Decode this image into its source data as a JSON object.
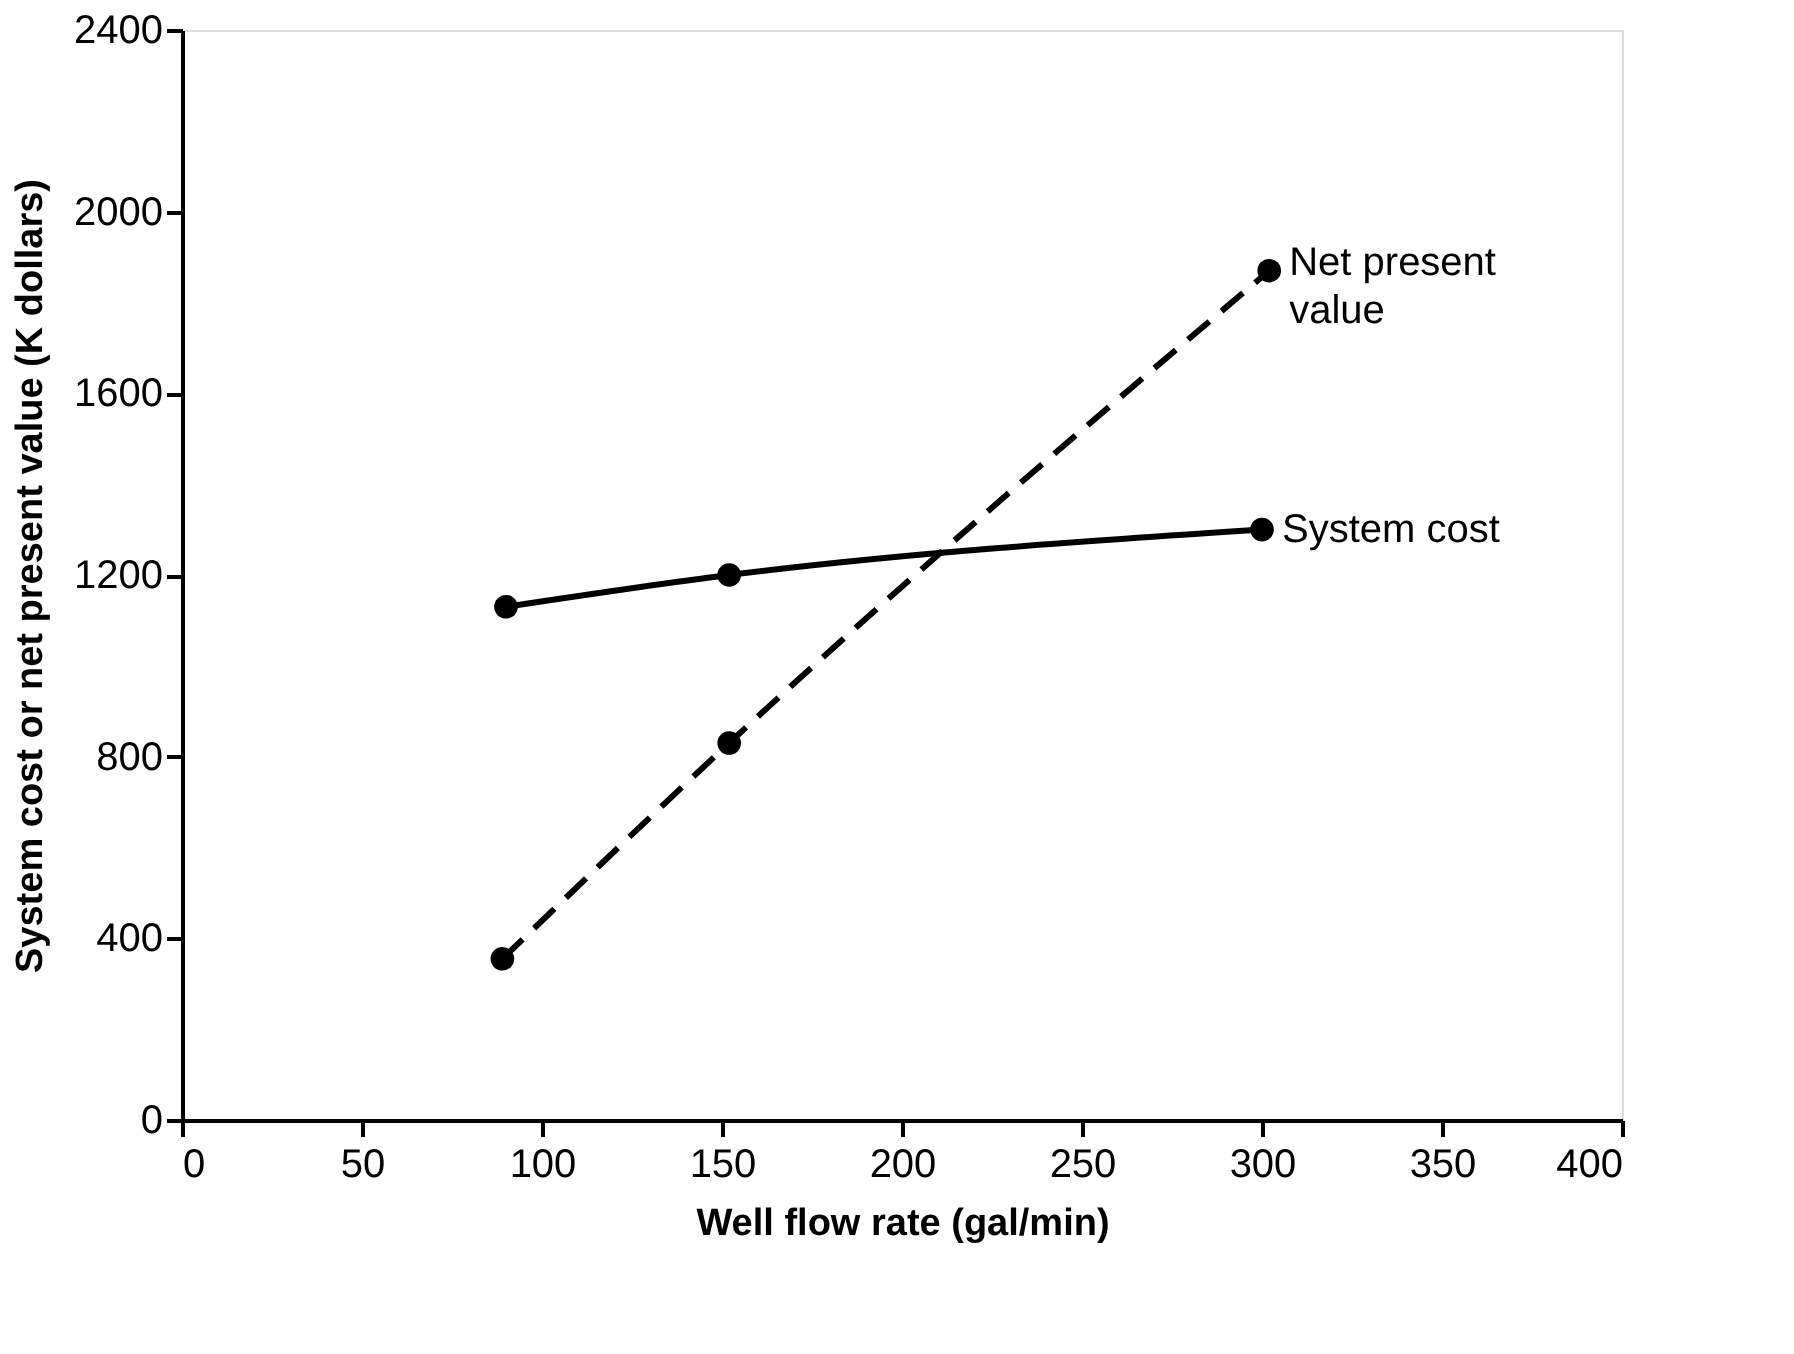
{
  "chart_data": {
    "type": "line",
    "xlabel": "Well flow rate (gal/min)",
    "ylabel": "System cost or net present value (K dollars)",
    "xlim": [
      0,
      400
    ],
    "xticks": [
      0,
      50,
      100,
      150,
      200,
      250,
      300,
      350,
      400
    ],
    "ylim": [
      0,
      2400
    ],
    "yticks": [
      0,
      400,
      800,
      1200,
      1600,
      2000,
      2400
    ],
    "grid": false,
    "legend": false,
    "marker": "circle",
    "series": [
      {
        "name": "System cost",
        "color": "#000000",
        "x": [
          90,
          152,
          300
        ],
        "values": [
          1130,
          1200,
          1300
        ],
        "line_style": "solid"
      },
      {
        "name": "Net present value",
        "color": "#000000",
        "x": [
          89,
          152,
          302
        ],
        "values": [
          355,
          830,
          1870
        ],
        "line_style": "dashed"
      }
    ]
  }
}
